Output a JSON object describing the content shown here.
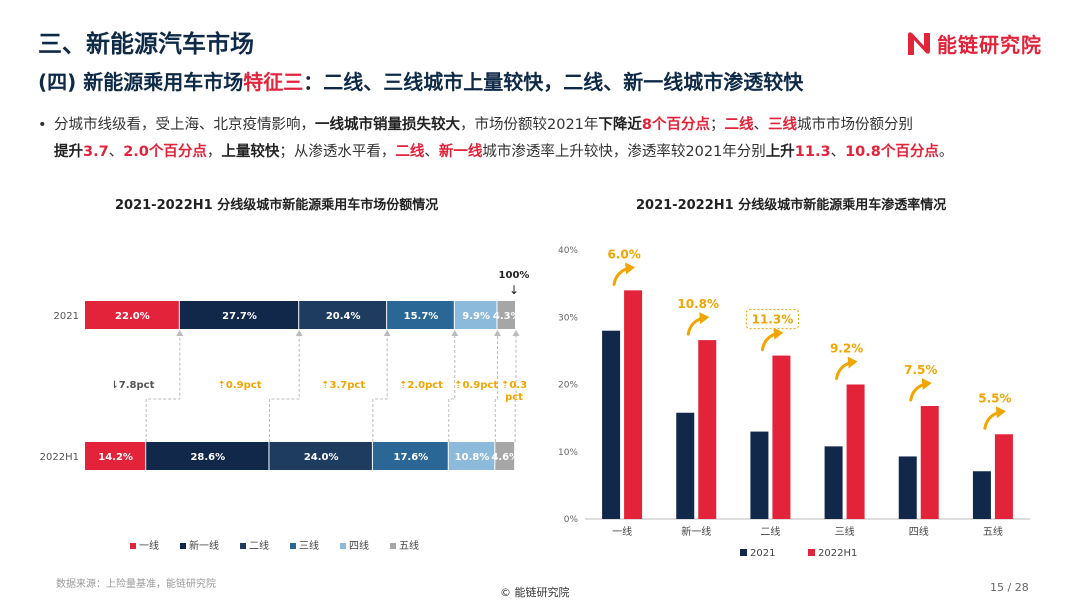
{
  "header": {
    "section_title": "三、新能源汽车市场",
    "brand_name": "能链研究院",
    "subtitle_prefix": "(四) 新能源乘用车市场",
    "subtitle_highlight": "特征三",
    "subtitle_suffix": "：二线、三线城市上量较快，二线、新一线城市渗透较快"
  },
  "bullet": {
    "dot": "•",
    "p1": "分城市线级看，受上海、北京疫情影响，",
    "b1": "一线城市销量损失较大",
    "p2": "，市场份额较2021年",
    "b2": "下降近",
    "r1": "8个百分点",
    "p3": "；",
    "r2": "二线",
    "p4": "、",
    "r3": "三线",
    "p5": "城市市场份额分别",
    "b3": "提升",
    "r4": "3.7",
    "p6": "、",
    "r5": "2.0个百分点",
    "p7": "，",
    "b4": "上量较快",
    "p8": "；从渗透水平看，",
    "r6": "二线",
    "p9": "、",
    "r7": "新一线",
    "p10": "城市渗透率上升较快，渗透率较2021年分别",
    "b5": "上升",
    "r8": "11.3",
    "p11": "、",
    "r9": "10.8个百分点",
    "p12": "。"
  },
  "footer": {
    "source": "数据来源：上险量基准，能链研究院",
    "copyright": "© 能链研究院",
    "page": "15 / 28"
  },
  "chart_data": [
    {
      "type": "bar",
      "orientation": "horizontal",
      "stacked": true,
      "title": "2021-2022H1 分线级城市新能源乘用车市场份额情况",
      "categories": [
        "2021",
        "2022H1"
      ],
      "series": [
        {
          "name": "一线",
          "values": [
            22.0,
            14.2
          ],
          "labels": [
            "22.0%",
            "14.2%"
          ],
          "color": "#e2233a"
        },
        {
          "name": "新一线",
          "values": [
            27.7,
            28.6
          ],
          "labels": [
            "27.7%",
            "28.6%"
          ],
          "color": "#11284a"
        },
        {
          "name": "二线",
          "values": [
            20.4,
            24.0
          ],
          "labels": [
            "20.4%",
            "24.0%"
          ],
          "color": "#1e3c60"
        },
        {
          "name": "三线",
          "values": [
            15.7,
            17.6
          ],
          "labels": [
            "15.7%",
            "17.6%"
          ],
          "color": "#2a6797"
        },
        {
          "name": "四线",
          "values": [
            9.9,
            10.8
          ],
          "labels": [
            "9.9%",
            "10.8%"
          ],
          "color": "#8cbadb"
        },
        {
          "name": "五线",
          "values": [
            4.3,
            4.6
          ],
          "labels": [
            "4.3%",
            "4.6%"
          ],
          "color": "#a6a6a6"
        }
      ],
      "changes": [
        {
          "arrow": "⇂",
          "value": "7.8pct",
          "color": "#555555"
        },
        {
          "arrow": "⇡",
          "value": "0.9pct",
          "color": "#f0a500"
        },
        {
          "arrow": "⇡",
          "value": "3.7pct",
          "color": "#f0a500"
        },
        {
          "arrow": "⇡",
          "value": "2.0pct",
          "color": "#f0a500"
        },
        {
          "arrow": "⇡",
          "value": "0.9pct",
          "color": "#f0a500"
        },
        {
          "arrow": "⇡",
          "value": "0.3 pct",
          "color": "#f0a500"
        }
      ],
      "total_label": "100%",
      "total_arrow": "↓",
      "xlim": [
        0,
        100
      ],
      "legend": "bottom"
    },
    {
      "type": "bar",
      "title": "2021-2022H1 分线级城市新能源乘用车渗透率情况",
      "categories": [
        "一线",
        "新一线",
        "二线",
        "三线",
        "四线",
        "五线"
      ],
      "series": [
        {
          "name": "2021",
          "values": [
            28.0,
            15.8,
            13.0,
            10.8,
            9.3,
            7.1
          ],
          "color": "#11284a"
        },
        {
          "name": "2022H1",
          "values": [
            34.0,
            26.6,
            24.3,
            20.0,
            16.8,
            12.6
          ],
          "color": "#e2233a"
        }
      ],
      "increase_labels": [
        "6.0%",
        "10.8%",
        "11.3%",
        "9.2%",
        "7.5%",
        "5.5%"
      ],
      "highlight_index": 2,
      "label_color": "#f0a500",
      "ylim": [
        0,
        40
      ],
      "yticks": [
        "0%",
        "10%",
        "20%",
        "30%",
        "40%"
      ],
      "grid": false,
      "legend": "bottom"
    }
  ]
}
